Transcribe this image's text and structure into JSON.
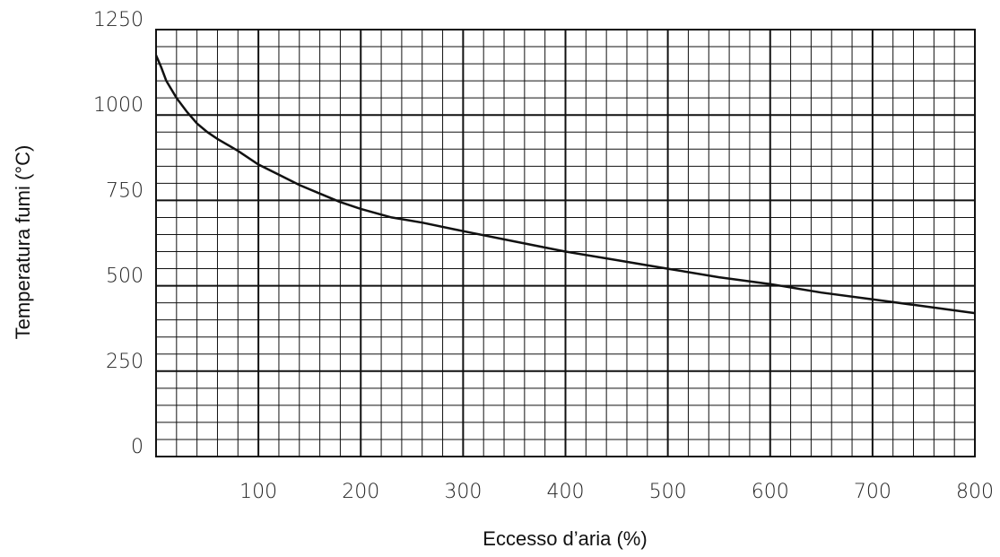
{
  "chart_data": {
    "type": "line",
    "title": "",
    "xlabel": "Eccesso d’aria (%)",
    "ylabel": "Temperatura fumi (°C)",
    "xlim": [
      0,
      800
    ],
    "ylim": [
      0,
      1250
    ],
    "x_ticks": [
      100,
      200,
      300,
      400,
      500,
      600,
      700,
      800
    ],
    "x_tick_labels": [
      "100",
      "200",
      "300",
      "400",
      "500",
      "600",
      "700",
      "800"
    ],
    "y_ticks": [
      0,
      250,
      500,
      750,
      1000,
      1250
    ],
    "y_tick_labels": [
      "0",
      "250",
      "500",
      "750",
      "1000",
      "1250"
    ],
    "x_minor_step": 20,
    "y_minor_step": 50,
    "grid": true,
    "series": [
      {
        "x": [
          0,
          5,
          10,
          20,
          30,
          40,
          50,
          60,
          80,
          100,
          120,
          140,
          160,
          180,
          200,
          230,
          260,
          300,
          350,
          400,
          450,
          500,
          550,
          600,
          650,
          700,
          750,
          800
        ],
        "y": [
          1175,
          1140,
          1100,
          1050,
          1010,
          975,
          950,
          930,
          895,
          855,
          825,
          795,
          770,
          745,
          725,
          700,
          685,
          660,
          630,
          600,
          575,
          550,
          525,
          505,
          480,
          460,
          440,
          420
        ]
      }
    ]
  }
}
